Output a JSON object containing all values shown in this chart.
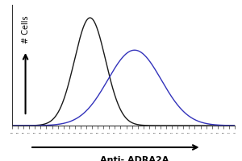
{
  "title": "",
  "xlabel": "Anti- ADRA2A",
  "ylabel": "# Cells",
  "background_color": "#ffffff",
  "black_curve": {
    "color": "#1a1a1a",
    "mean": 0.35,
    "std": 0.07,
    "peak": 1.0
  },
  "blue_curve": {
    "color": "#3333bb",
    "mean": 0.55,
    "std": 0.12,
    "peak": 0.7
  },
  "xlim": [
    0.0,
    1.0
  ],
  "ylim": [
    0,
    1.12
  ],
  "figsize": [
    3.0,
    2.0
  ],
  "dpi": 100
}
